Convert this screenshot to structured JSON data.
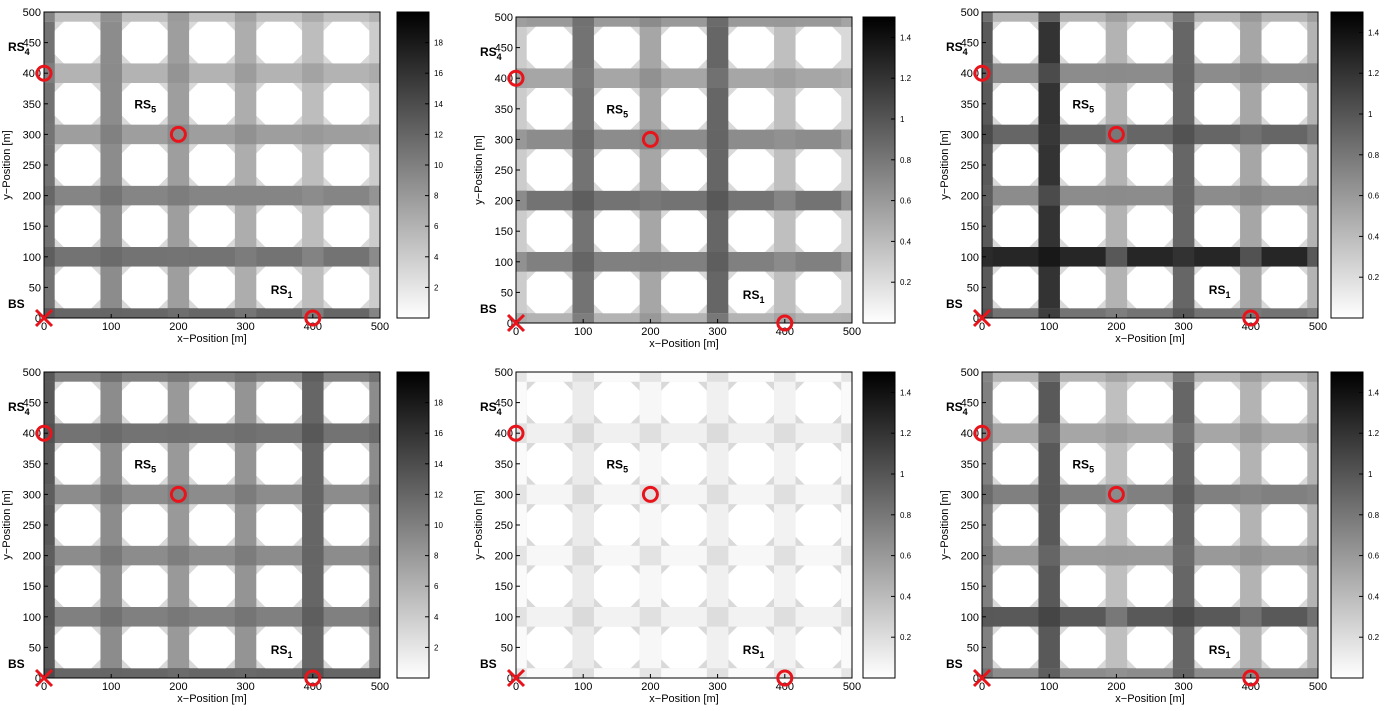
{
  "colors": {
    "marker": "#e8141c",
    "block": "#ffffff",
    "frame": "#000000",
    "colormap": [
      "#ffffff",
      "#000000"
    ]
  },
  "chart_data": [
    {
      "type": "heatmap",
      "panel": "top-left",
      "xlabel": "x−Position [m]",
      "ylabel": "y−Position [m]",
      "xlim": [
        0,
        500
      ],
      "ylim": [
        0,
        500
      ],
      "xticks": [
        "0",
        "100",
        "200",
        "300",
        "400",
        "500"
      ],
      "yticks": [
        "0",
        "50",
        "100",
        "150",
        "200",
        "250",
        "300",
        "350",
        "400",
        "450",
        "500"
      ],
      "colorbar": {
        "range": [
          0,
          20
        ],
        "ticks": [
          "2",
          "4",
          "6",
          "8",
          "10",
          "12",
          "14",
          "16",
          "18"
        ]
      },
      "street_x": [
        0.55,
        0.45,
        0.38,
        0.32,
        0.26,
        0.2
      ],
      "street_y": [
        0.6,
        0.55,
        0.48,
        0.38,
        0.3,
        0.25
      ],
      "base_station": {
        "label": "BS",
        "x": 0,
        "y": 0
      },
      "relays": [
        {
          "label": "RS",
          "sub": "1",
          "x": 400,
          "y": 0
        },
        {
          "label": "RS",
          "sub": "4",
          "x": 0,
          "y": 400
        },
        {
          "label": "RS",
          "sub": "5",
          "x": 200,
          "y": 300
        }
      ]
    },
    {
      "type": "heatmap",
      "panel": "top-middle",
      "xlabel": "x−Position [m]",
      "ylabel": "y−Position [m]",
      "xlim": [
        0,
        500
      ],
      "ylim": [
        0,
        500
      ],
      "xticks": [
        "0",
        "100",
        "200",
        "300",
        "400",
        "500"
      ],
      "yticks": [
        "0",
        "50",
        "100",
        "150",
        "200",
        "250",
        "300",
        "350",
        "400",
        "450",
        "500"
      ],
      "colorbar": {
        "range": [
          0,
          1.5
        ],
        "ticks": [
          "0.2",
          "0.4",
          "0.6",
          "0.8",
          "1",
          "1.2",
          "1.4"
        ]
      },
      "street_x": [
        0.2,
        0.55,
        0.35,
        0.6,
        0.25,
        0.15
      ],
      "street_y": [
        0.3,
        0.5,
        0.55,
        0.45,
        0.35,
        0.4
      ],
      "base_station": {
        "label": "BS",
        "x": 0,
        "y": 0
      },
      "relays": [
        {
          "label": "RS",
          "sub": "1",
          "x": 400,
          "y": 0
        },
        {
          "label": "RS",
          "sub": "4",
          "x": 0,
          "y": 400
        },
        {
          "label": "RS",
          "sub": "5",
          "x": 200,
          "y": 300
        }
      ]
    },
    {
      "type": "heatmap",
      "panel": "top-right",
      "xlabel": "x−Position [m]",
      "ylabel": "y−Position [m]",
      "xlim": [
        0,
        500
      ],
      "ylim": [
        0,
        500
      ],
      "xticks": [
        "0",
        "100",
        "200",
        "300",
        "400",
        "500"
      ],
      "yticks": [
        "0",
        "50",
        "100",
        "150",
        "200",
        "250",
        "300",
        "350",
        "400",
        "450",
        "500"
      ],
      "colorbar": {
        "range": [
          0,
          1.5
        ],
        "ticks": [
          "0.2",
          "0.4",
          "0.6",
          "0.8",
          "1",
          "1.2",
          "1.4"
        ]
      },
      "street_x": [
        0.65,
        0.8,
        0.3,
        0.6,
        0.35,
        0.3
      ],
      "street_y": [
        0.55,
        0.85,
        0.45,
        0.6,
        0.45,
        0.3
      ],
      "base_station": {
        "label": "BS",
        "x": 0,
        "y": 0
      },
      "relays": [
        {
          "label": "RS",
          "sub": "1",
          "x": 400,
          "y": 0
        },
        {
          "label": "RS",
          "sub": "4",
          "x": 0,
          "y": 400
        },
        {
          "label": "RS",
          "sub": "5",
          "x": 200,
          "y": 300
        }
      ]
    },
    {
      "type": "heatmap",
      "panel": "bottom-left",
      "xlabel": "x−Position [m]",
      "ylabel": "y−Position [m]",
      "xlim": [
        0,
        500
      ],
      "ylim": [
        0,
        500
      ],
      "xticks": [
        "0",
        "100",
        "200",
        "300",
        "400",
        "500"
      ],
      "yticks": [
        "0",
        "50",
        "100",
        "150",
        "200",
        "250",
        "300",
        "350",
        "400",
        "450",
        "500"
      ],
      "colorbar": {
        "range": [
          0,
          20
        ],
        "ticks": [
          "2",
          "4",
          "6",
          "8",
          "10",
          "12",
          "14",
          "16",
          "18"
        ]
      },
      "street_x": [
        0.65,
        0.45,
        0.4,
        0.42,
        0.6,
        0.45
      ],
      "street_y": [
        0.6,
        0.5,
        0.45,
        0.45,
        0.55,
        0.5
      ],
      "base_station": {
        "label": "BS",
        "x": 0,
        "y": 0
      },
      "relays": [
        {
          "label": "RS",
          "sub": "1",
          "x": 400,
          "y": 0
        },
        {
          "label": "RS",
          "sub": "4",
          "x": 0,
          "y": 400
        },
        {
          "label": "RS",
          "sub": "5",
          "x": 200,
          "y": 300
        }
      ]
    },
    {
      "type": "heatmap",
      "panel": "bottom-middle",
      "xlabel": "x−Position [m]",
      "ylabel": "y−Position [m]",
      "xlim": [
        0,
        500
      ],
      "ylim": [
        0,
        500
      ],
      "xticks": [
        "0",
        "100",
        "200",
        "300",
        "400",
        "500"
      ],
      "yticks": [
        "0",
        "50",
        "100",
        "150",
        "200",
        "250",
        "300",
        "350",
        "400",
        "450",
        "500"
      ],
      "colorbar": {
        "range": [
          0,
          1.5
        ],
        "ticks": [
          "0.2",
          "0.4",
          "0.6",
          "0.8",
          "1",
          "1.2",
          "1.4"
        ]
      },
      "street_x": [
        0.02,
        0.08,
        0.03,
        0.06,
        0.05,
        0.02
      ],
      "street_y": [
        0.02,
        0.05,
        0.03,
        0.04,
        0.06,
        0.02
      ],
      "base_station": {
        "label": "BS",
        "x": 0,
        "y": 0
      },
      "relays": [
        {
          "label": "RS",
          "sub": "1",
          "x": 400,
          "y": 0
        },
        {
          "label": "RS",
          "sub": "4",
          "x": 0,
          "y": 400
        },
        {
          "label": "RS",
          "sub": "5",
          "x": 200,
          "y": 300
        }
      ]
    },
    {
      "type": "heatmap",
      "panel": "bottom-right",
      "xlabel": "x−Position [m]",
      "ylabel": "y−Position [m]",
      "xlim": [
        0,
        500
      ],
      "ylim": [
        0,
        500
      ],
      "xticks": [
        "0",
        "100",
        "200",
        "300",
        "400",
        "500"
      ],
      "yticks": [
        "0",
        "50",
        "100",
        "150",
        "200",
        "250",
        "300",
        "350",
        "400",
        "450",
        "500"
      ],
      "colorbar": {
        "range": [
          0,
          1.5
        ],
        "ticks": [
          "0.2",
          "0.4",
          "0.6",
          "0.8",
          "1",
          "1.2",
          "1.4"
        ]
      },
      "street_x": [
        0.5,
        0.65,
        0.25,
        0.6,
        0.3,
        0.3
      ],
      "street_y": [
        0.45,
        0.65,
        0.4,
        0.5,
        0.35,
        0.3
      ],
      "base_station": {
        "label": "BS",
        "x": 0,
        "y": 0
      },
      "relays": [
        {
          "label": "RS",
          "sub": "1",
          "x": 400,
          "y": 0
        },
        {
          "label": "RS",
          "sub": "4",
          "x": 0,
          "y": 400
        },
        {
          "label": "RS",
          "sub": "5",
          "x": 200,
          "y": 300
        }
      ]
    }
  ]
}
